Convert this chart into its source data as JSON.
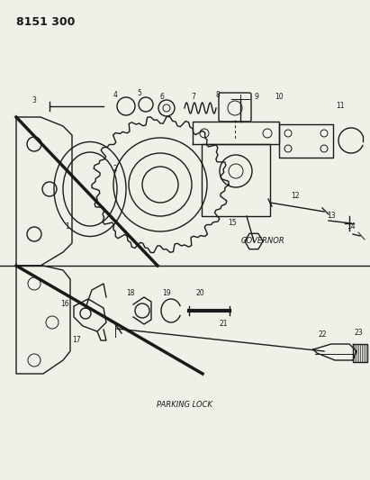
{
  "title": "8151 300",
  "bg_color": "#f0efe8",
  "line_color": "#1a1a1a",
  "governor_label": "GOVERNOR",
  "parking_label": "PARKING LOCK",
  "figsize": [
    4.11,
    5.33
  ],
  "dpi": 100
}
